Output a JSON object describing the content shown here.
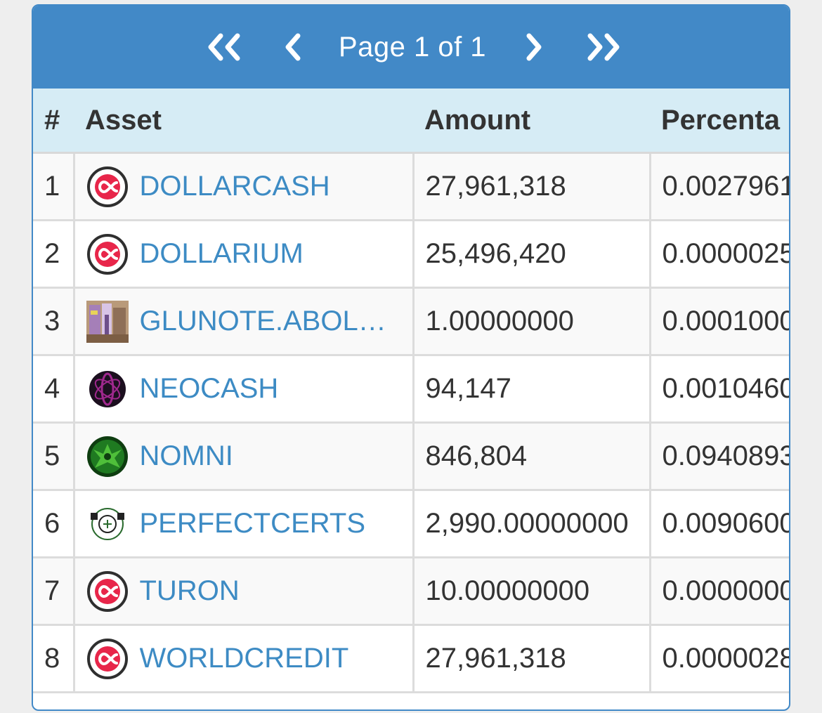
{
  "pager": {
    "label": "Page 1 of 1",
    "first_icon": "double-chevron-left-icon",
    "prev_icon": "chevron-left-icon",
    "next_icon": "chevron-right-icon",
    "last_icon": "double-chevron-right-icon"
  },
  "table": {
    "headers": [
      "#",
      "Asset",
      "Amount",
      "Percenta"
    ],
    "rows": [
      {
        "num": "1",
        "asset": "DOLLARCASH",
        "amount": "27,961,318",
        "percentage": "0.0027961",
        "icon": "infinity-coin-icon"
      },
      {
        "num": "2",
        "asset": "DOLLARIUM",
        "amount": "25,496,420",
        "percentage": "0.0000025",
        "icon": "infinity-coin-icon"
      },
      {
        "num": "3",
        "asset": "GLUNOTE.ABOL…",
        "amount": "1.00000000",
        "percentage": "0.0001000",
        "icon": "photo-thumbnail-icon"
      },
      {
        "num": "4",
        "asset": "NEOCASH",
        "amount": "94,147",
        "percentage": "0.0010460",
        "icon": "atom-logo-icon"
      },
      {
        "num": "5",
        "asset": "NOMNI",
        "amount": "846,804",
        "percentage": "0.0940893",
        "icon": "green-emblem-icon"
      },
      {
        "num": "6",
        "asset": "PERFECTCERTS",
        "amount": "2,990.00000000",
        "percentage": "0.0090600",
        "icon": "certificate-seal-icon"
      },
      {
        "num": "7",
        "asset": "TURON",
        "amount": "10.00000000",
        "percentage": "0.0000000",
        "icon": "infinity-coin-icon"
      },
      {
        "num": "8",
        "asset": "WORLDCREDIT",
        "amount": "27,961,318",
        "percentage": "0.0000028",
        "icon": "infinity-coin-icon"
      }
    ]
  },
  "colors": {
    "header_bar": "#4289c7",
    "column_header_bg": "#d6ecf5",
    "link": "#3d8bc4",
    "coin_accent": "#e8264a"
  }
}
